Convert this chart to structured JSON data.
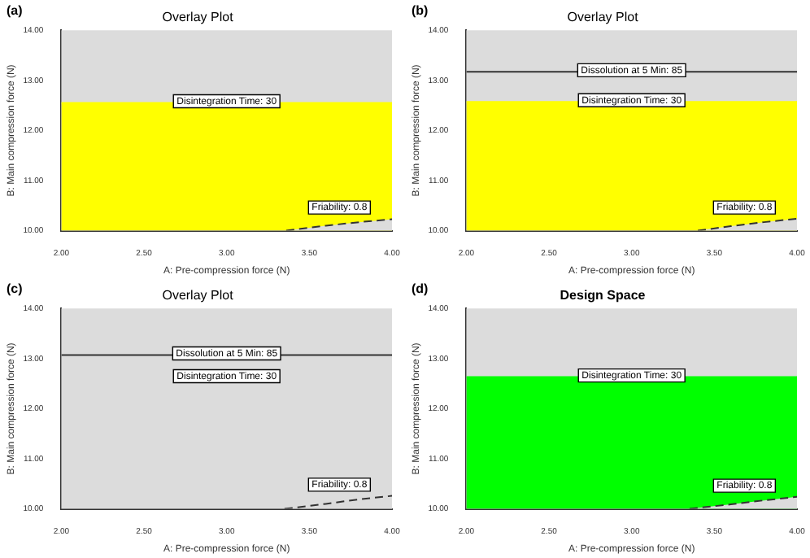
{
  "chart_data": [
    {
      "type": "area",
      "title": "Overlay Plot",
      "xlabel": "A: Pre-compression force (N)",
      "ylabel": "B: Main compression force (N)",
      "annotations": [
        "(a)"
      ],
      "xlim": [
        2,
        4
      ],
      "ylim": [
        10,
        14
      ],
      "xticks": [
        {
          "value": 2,
          "label": "2.00"
        },
        {
          "value": 2.5,
          "label": "2.50"
        },
        {
          "value": 3,
          "label": "3.00"
        },
        {
          "value": 3.5,
          "label": "3.50"
        },
        {
          "value": 4,
          "label": "4.00"
        }
      ],
      "yticks": [
        {
          "value": 10,
          "label": "10.00"
        },
        {
          "value": 11,
          "label": "11.00"
        },
        {
          "value": 12,
          "label": "12.00"
        },
        {
          "value": 13,
          "label": "13.00"
        },
        {
          "value": 14,
          "label": "14.00"
        }
      ],
      "grid": false,
      "legend": false,
      "series": [
        {
          "name": "Disintegration Time: 30",
          "color": "#ffff00",
          "x": [
            2,
            4
          ],
          "values": [
            12.55,
            12.55
          ]
        },
        {
          "name": "Friability: 0.8",
          "color": "#dcdcdc",
          "line_style": "dashed",
          "x": [
            3.36,
            3.6,
            3.8,
            4
          ],
          "values": [
            10,
            10.1,
            10.17,
            10.23
          ]
        }
      ]
    },
    {
      "type": "area",
      "title": "Overlay Plot",
      "xlabel": "A: Pre-compression force (N)",
      "ylabel": "B: Main compression force (N)",
      "annotations": [
        "(b)"
      ],
      "xlim": [
        2,
        4
      ],
      "ylim": [
        10,
        14
      ],
      "xticks": [
        {
          "value": 2,
          "label": "2.00"
        },
        {
          "value": 2.5,
          "label": "2.50"
        },
        {
          "value": 3,
          "label": "3.00"
        },
        {
          "value": 3.5,
          "label": "3.50"
        },
        {
          "value": 4,
          "label": "4.00"
        }
      ],
      "yticks": [
        {
          "value": 10,
          "label": "10.00"
        },
        {
          "value": 11,
          "label": "11.00"
        },
        {
          "value": 12,
          "label": "12.00"
        },
        {
          "value": 13,
          "label": "13.00"
        },
        {
          "value": 14,
          "label": "14.00"
        }
      ],
      "grid": false,
      "legend": false,
      "series": [
        {
          "name": "Disintegration Time: 30",
          "color": "#ffff00",
          "x": [
            2,
            4
          ],
          "values": [
            12.57,
            12.57
          ]
        },
        {
          "name": "Dissolution at 5 Min: 85",
          "type": "line",
          "color": "#333333",
          "x": [
            2,
            4
          ],
          "values": [
            13.17,
            13.17
          ]
        },
        {
          "name": "Friability: 0.8",
          "color": "#dcdcdc",
          "line_style": "dashed",
          "x": [
            3.4,
            3.6,
            3.8,
            4
          ],
          "values": [
            10,
            10.09,
            10.17,
            10.24
          ]
        }
      ]
    },
    {
      "type": "area",
      "title": "Overlay Plot",
      "xlabel": "A: Pre-compression force (N)",
      "ylabel": "B: Main compression force (N)",
      "annotations": [
        "(c)",
        "Disintegration Time: 30"
      ],
      "xlim": [
        2,
        4
      ],
      "ylim": [
        10,
        14
      ],
      "xticks": [
        {
          "value": 2,
          "label": "2.00"
        },
        {
          "value": 2.5,
          "label": "2.50"
        },
        {
          "value": 3,
          "label": "3.00"
        },
        {
          "value": 3.5,
          "label": "3.50"
        },
        {
          "value": 4,
          "label": "4.00"
        }
      ],
      "yticks": [
        {
          "value": 10,
          "label": "10.00"
        },
        {
          "value": 11,
          "label": "11.00"
        },
        {
          "value": 12,
          "label": "12.00"
        },
        {
          "value": 13,
          "label": "13.00"
        },
        {
          "value": 14,
          "label": "14.00"
        }
      ],
      "grid": false,
      "legend": false,
      "series": [
        {
          "name": "Dissolution at 5 Min: 85",
          "type": "line",
          "color": "#333333",
          "x": [
            2,
            4
          ],
          "values": [
            13.07,
            13.07
          ]
        },
        {
          "name": "Friability: 0.8",
          "color": "#dcdcdc",
          "line_style": "dashed",
          "x": [
            3.35,
            3.6,
            3.8,
            4
          ],
          "values": [
            10,
            10.1,
            10.19,
            10.26
          ]
        }
      ]
    },
    {
      "type": "area",
      "title": "Design Space",
      "xlabel": "A: Pre-compression force (N)",
      "ylabel": "B: Main compression force (N)",
      "annotations": [
        "(d)"
      ],
      "xlim": [
        2,
        4
      ],
      "ylim": [
        10,
        14
      ],
      "xticks": [
        {
          "value": 2,
          "label": "2.00"
        },
        {
          "value": 2.5,
          "label": "2.50"
        },
        {
          "value": 3,
          "label": "3.00"
        },
        {
          "value": 3.5,
          "label": "3.50"
        },
        {
          "value": 4,
          "label": "4.00"
        }
      ],
      "yticks": [
        {
          "value": 10,
          "label": "10.00"
        },
        {
          "value": 11,
          "label": "11.00"
        },
        {
          "value": 12,
          "label": "12.00"
        },
        {
          "value": 13,
          "label": "13.00"
        },
        {
          "value": 14,
          "label": "14.00"
        }
      ],
      "grid": false,
      "legend": false,
      "series": [
        {
          "name": "Disintegration Time: 30",
          "color": "#00ff00",
          "x": [
            2,
            4
          ],
          "values": [
            12.63,
            12.63
          ]
        },
        {
          "name": "Friability: 0.8",
          "color": "#dcdcdc",
          "line_style": "dashed",
          "x": [
            3.35,
            3.6,
            3.8,
            4
          ],
          "values": [
            10,
            10.09,
            10.17,
            10.24
          ]
        }
      ]
    }
  ]
}
